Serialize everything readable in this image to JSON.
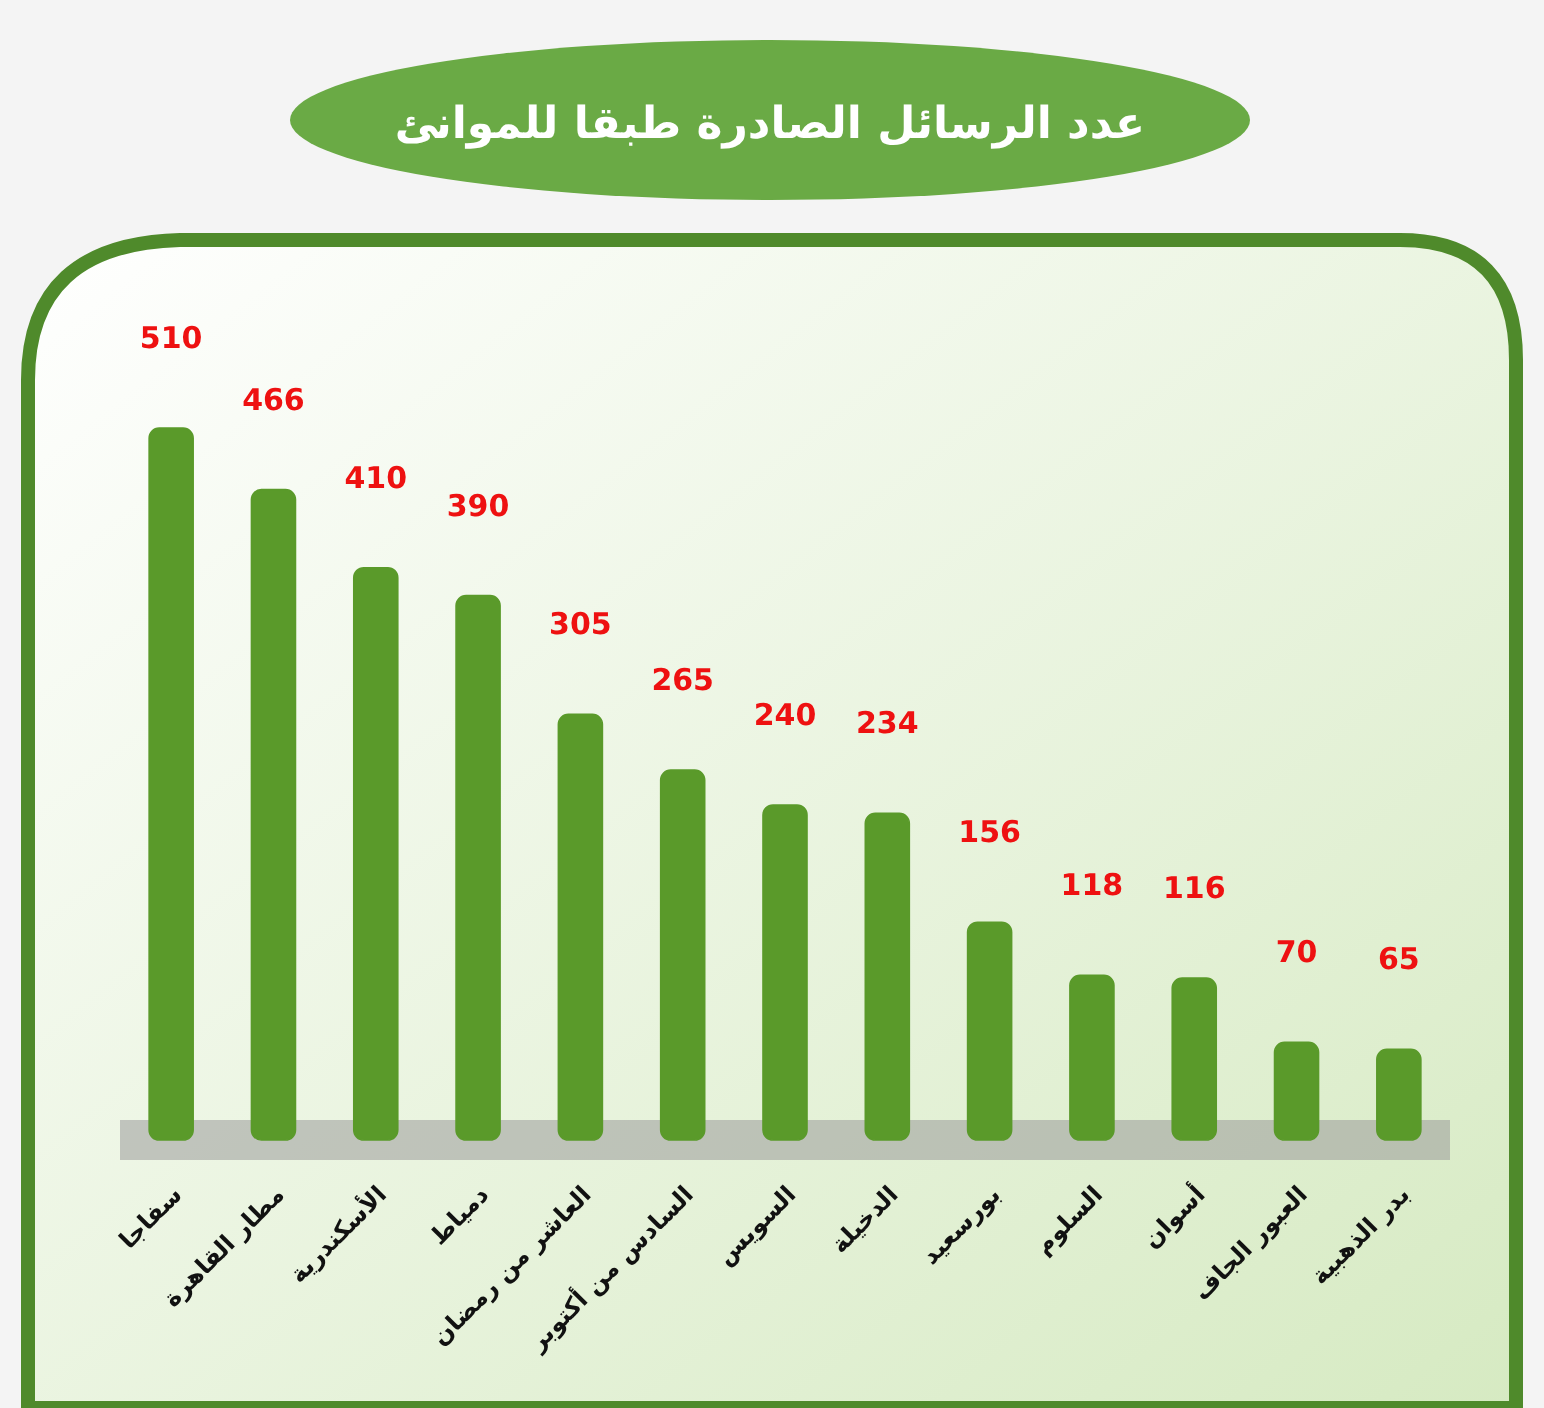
{
  "chart_data": {
    "type": "bar",
    "title": "عدد الرسائل الصادرة طبقا للموانئ",
    "categories": [
      "سفاجا",
      "مطار القاهرة",
      "الأسكندرية",
      "دمياط",
      "العاشر من رمضان",
      "السادس من أكتوبر",
      "السويس",
      "الدخيلة",
      "بورسعيد",
      "السلوم",
      "أسوان",
      "العبور الجاف",
      "بدر الذهبية"
    ],
    "values": [
      510,
      466,
      410,
      390,
      305,
      265,
      240,
      234,
      156,
      118,
      116,
      70,
      65
    ],
    "color": "#5a9a2a",
    "data_labels": true
  }
}
